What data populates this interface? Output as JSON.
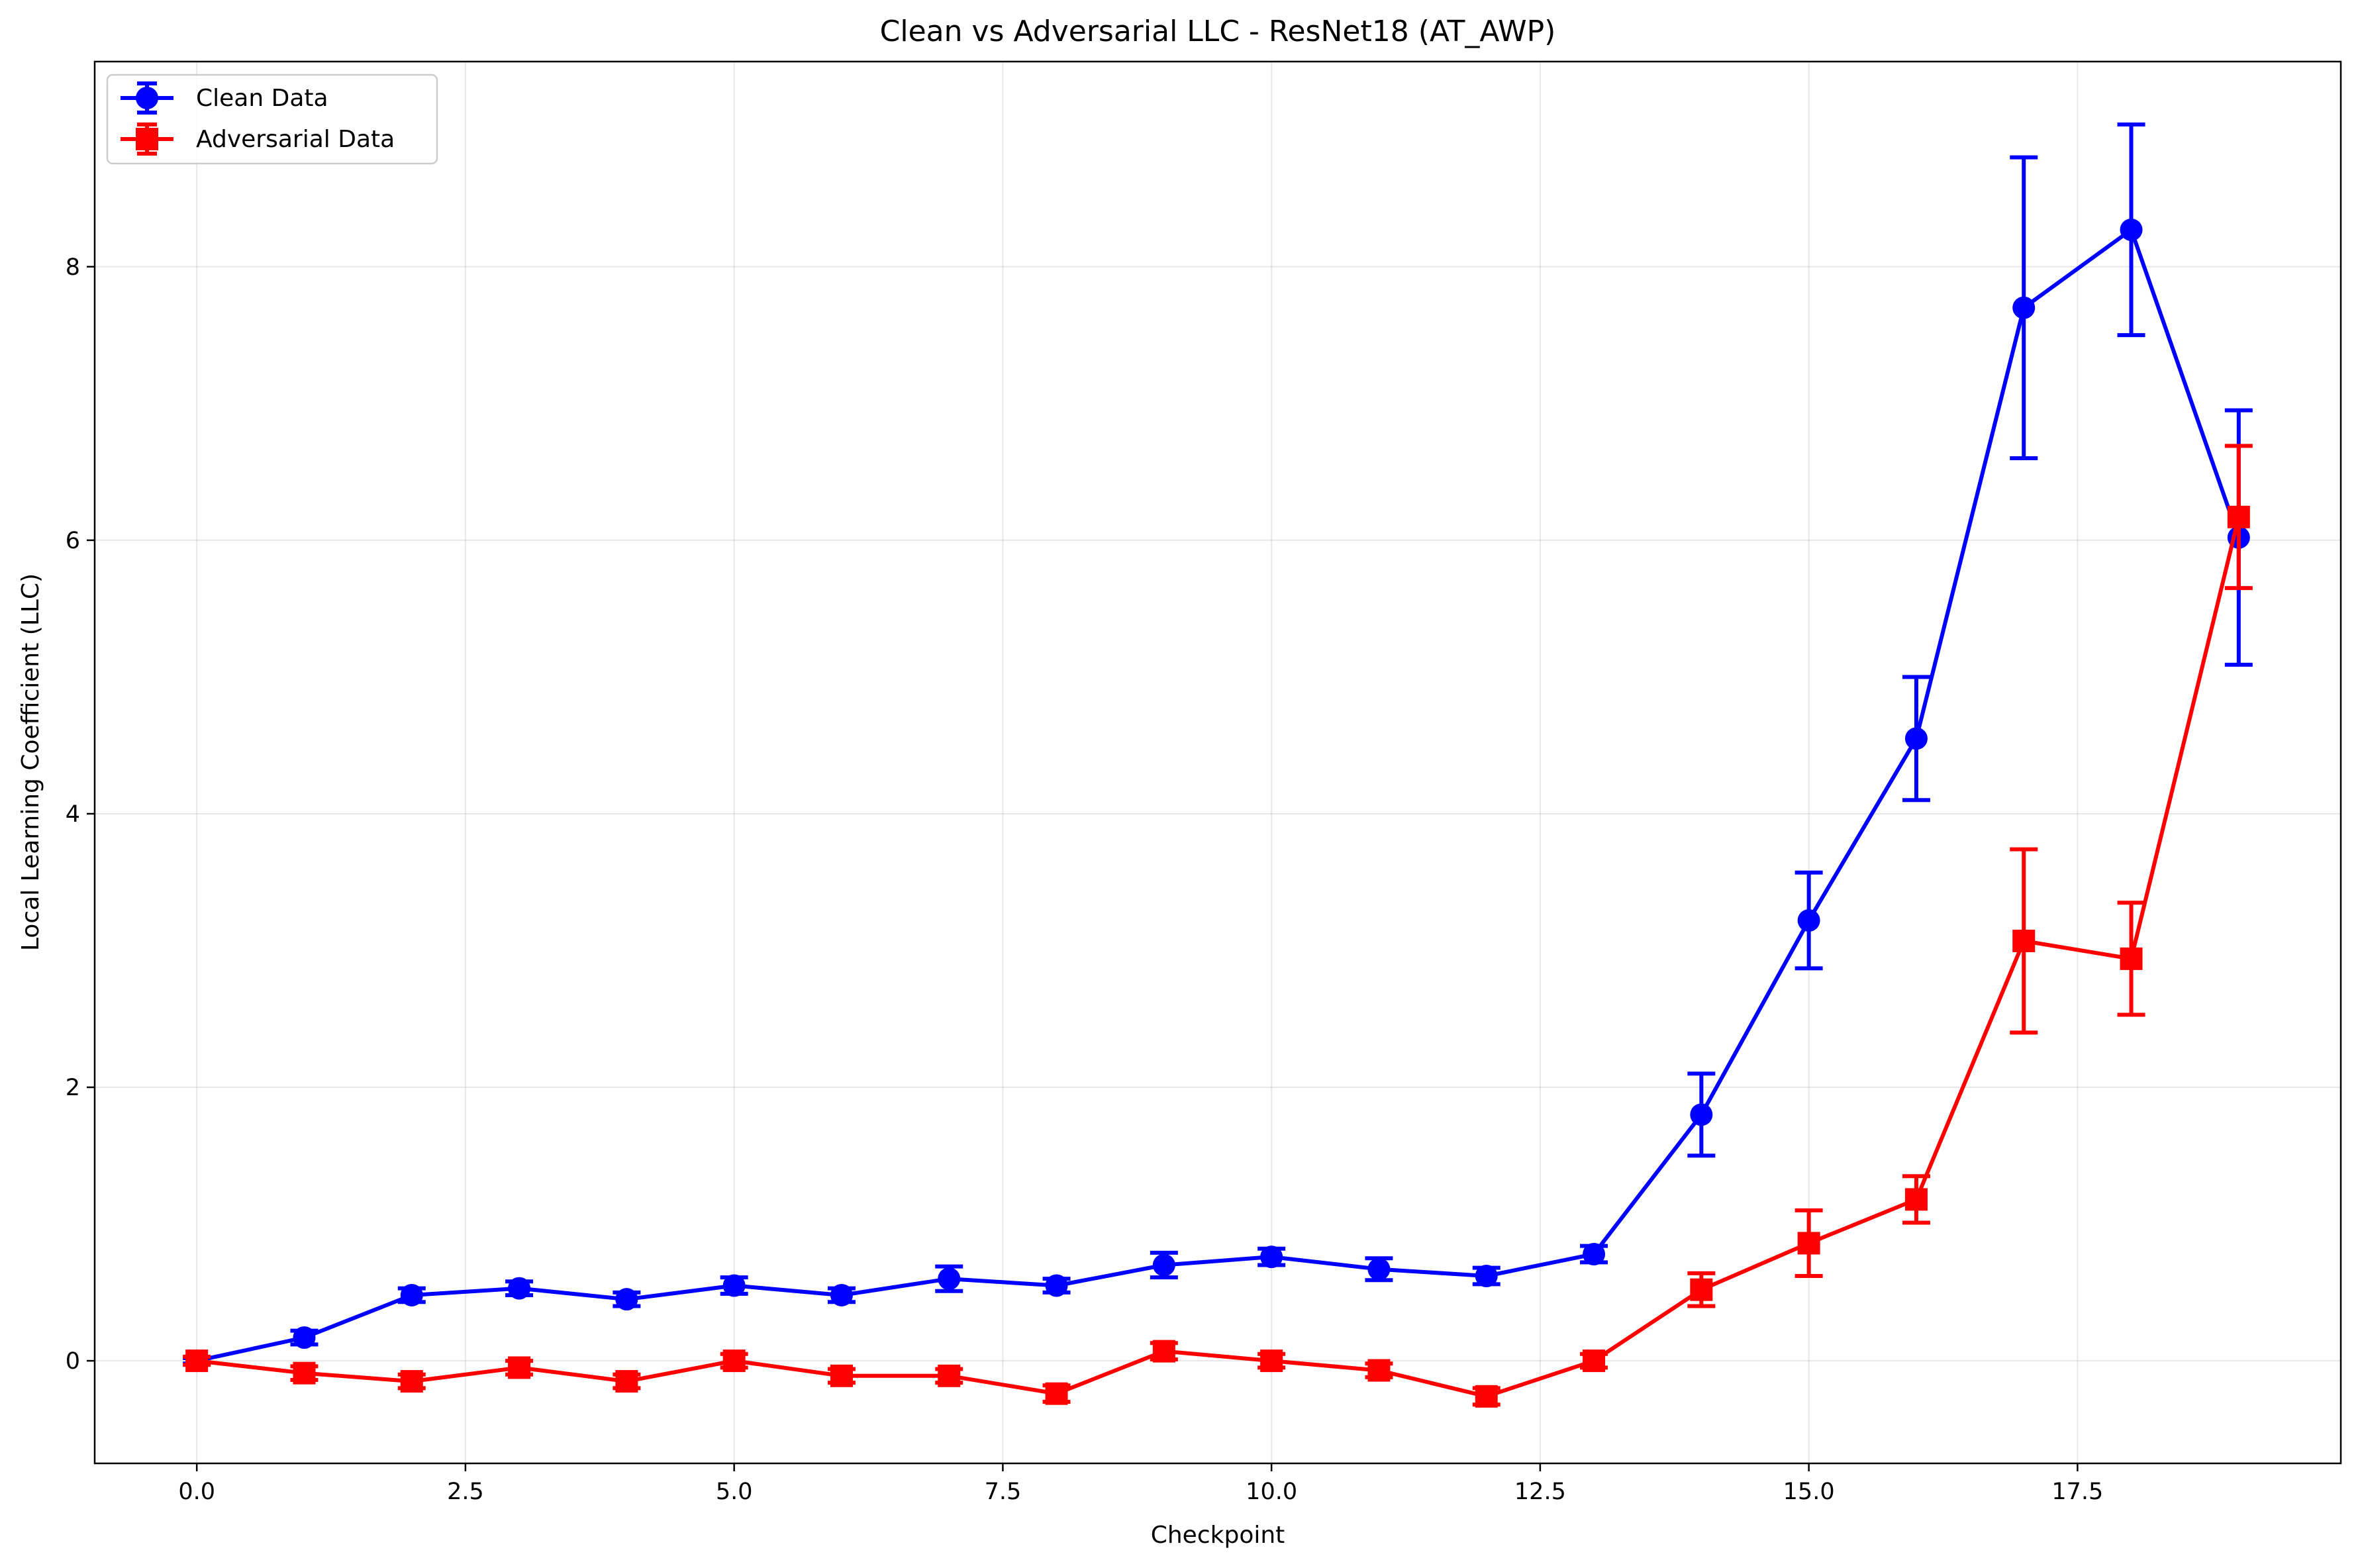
{
  "chart_data": {
    "type": "line",
    "title": "Clean vs Adversarial LLC - ResNet18 (AT_AWP)",
    "xlabel": "Checkpoint",
    "ylabel": "Local Learning Coefficient (LLC)",
    "xlim": [
      -0.95,
      19.95
    ],
    "ylim": [
      -0.75,
      9.5
    ],
    "xticks": [
      0.0,
      2.5,
      5.0,
      7.5,
      10.0,
      12.5,
      15.0,
      17.5
    ],
    "xtick_labels": [
      "0.0",
      "2.5",
      "5.0",
      "7.5",
      "10.0",
      "12.5",
      "15.0",
      "17.5"
    ],
    "yticks": [
      0,
      2,
      4,
      6,
      8
    ],
    "ytick_labels": [
      "0",
      "2",
      "4",
      "6",
      "8"
    ],
    "grid": true,
    "legend_position": "top-left",
    "series": [
      {
        "name": "Clean Data",
        "color": "#0000ff",
        "marker": "circle",
        "x": [
          0,
          1,
          2,
          3,
          4,
          5,
          6,
          7,
          8,
          9,
          10,
          11,
          12,
          13,
          14,
          15,
          16,
          17,
          18,
          19
        ],
        "y": [
          0.0,
          0.17,
          0.48,
          0.53,
          0.45,
          0.55,
          0.48,
          0.6,
          0.55,
          0.7,
          0.76,
          0.67,
          0.62,
          0.78,
          1.8,
          3.22,
          4.55,
          7.7,
          8.27,
          6.02
        ],
        "err": [
          0.02,
          0.05,
          0.05,
          0.05,
          0.05,
          0.06,
          0.05,
          0.09,
          0.05,
          0.09,
          0.06,
          0.08,
          0.06,
          0.06,
          0.3,
          0.35,
          0.45,
          1.1,
          0.77,
          0.93
        ]
      },
      {
        "name": "Adversarial Data",
        "color": "#ff0000",
        "marker": "square",
        "x": [
          0,
          1,
          2,
          3,
          4,
          5,
          6,
          7,
          8,
          9,
          10,
          11,
          12,
          13,
          14,
          15,
          16,
          17,
          18,
          19
        ],
        "y": [
          0.0,
          -0.09,
          -0.15,
          -0.05,
          -0.15,
          0.0,
          -0.11,
          -0.11,
          -0.24,
          0.07,
          0.0,
          -0.07,
          -0.26,
          0.0,
          0.52,
          0.86,
          1.18,
          3.07,
          2.94,
          6.17
        ],
        "err": [
          0.03,
          0.05,
          0.05,
          0.05,
          0.05,
          0.05,
          0.05,
          0.05,
          0.06,
          0.06,
          0.05,
          0.05,
          0.06,
          0.05,
          0.12,
          0.24,
          0.17,
          0.67,
          0.41,
          0.52
        ]
      }
    ]
  }
}
